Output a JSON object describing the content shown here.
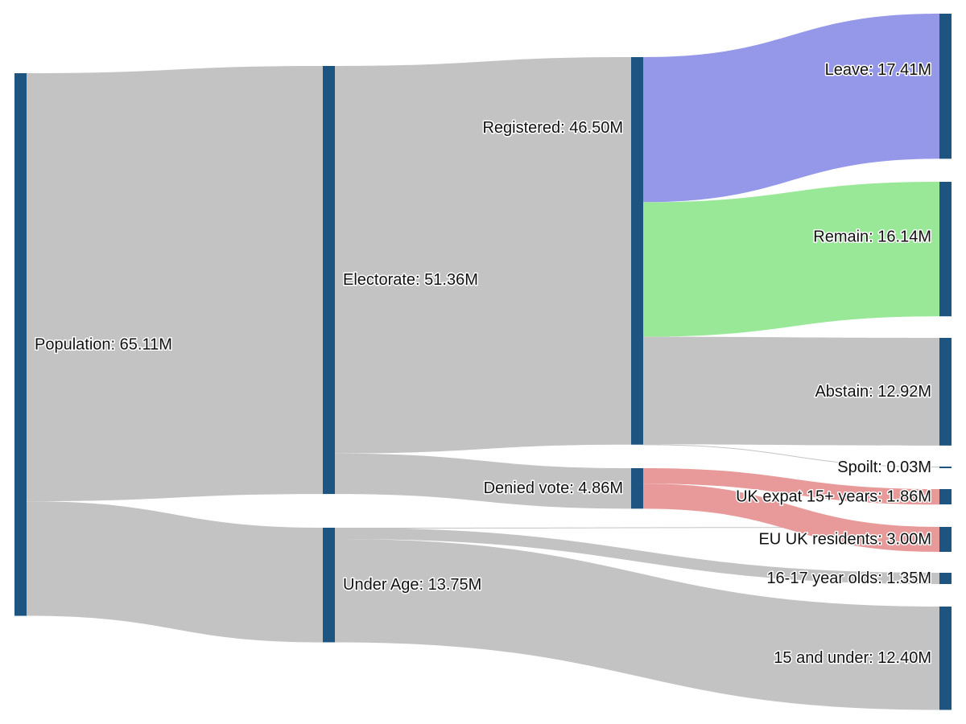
{
  "chart_data": {
    "type": "sankey",
    "unit": "M",
    "colors": {
      "node": "#1e5480",
      "link_default": "#c3c3c3",
      "leave": "#9598e8",
      "remain": "#98e898",
      "denied": "#e89a9a"
    },
    "nodes": [
      {
        "id": "population",
        "label": "Population: 65.11M",
        "value": 65.11
      },
      {
        "id": "electorate",
        "label": "Electorate: 51.36M",
        "value": 51.36
      },
      {
        "id": "under_age",
        "label": "Under Age: 13.75M",
        "value": 13.75
      },
      {
        "id": "registered",
        "label": "Registered: 46.50M",
        "value": 46.5
      },
      {
        "id": "denied_vote",
        "label": "Denied vote: 4.86M",
        "value": 4.86
      },
      {
        "id": "leave",
        "label": "Leave: 17.41M",
        "value": 17.41
      },
      {
        "id": "remain",
        "label": "Remain: 16.14M",
        "value": 16.14
      },
      {
        "id": "abstain",
        "label": "Abstain: 12.92M",
        "value": 12.92
      },
      {
        "id": "spoilt",
        "label": "Spoilt: 0.03M",
        "value": 0.03
      },
      {
        "id": "uk_expat",
        "label": "UK expat 15+ years: 1.86M",
        "value": 1.86
      },
      {
        "id": "eu_uk_residents",
        "label": "EU UK residents: 3.00M",
        "value": 3.0
      },
      {
        "id": "age_16_17",
        "label": "16-17 year olds: 1.35M",
        "value": 1.35
      },
      {
        "id": "age_15_under",
        "label": "15 and under: 12.40M",
        "value": 12.4
      }
    ],
    "links": [
      {
        "source": "population",
        "target": "electorate",
        "value": 51.36,
        "color": "link_default"
      },
      {
        "source": "population",
        "target": "under_age",
        "value": 13.75,
        "color": "link_default"
      },
      {
        "source": "electorate",
        "target": "registered",
        "value": 46.5,
        "color": "link_default"
      },
      {
        "source": "electorate",
        "target": "denied_vote",
        "value": 4.86,
        "color": "link_default"
      },
      {
        "source": "under_age",
        "target": "eu_uk_residents",
        "value": 0.0,
        "color": "link_default"
      },
      {
        "source": "under_age",
        "target": "age_16_17",
        "value": 1.35,
        "color": "link_default"
      },
      {
        "source": "under_age",
        "target": "age_15_under",
        "value": 12.4,
        "color": "link_default"
      },
      {
        "source": "registered",
        "target": "leave",
        "value": 17.41,
        "color": "leave"
      },
      {
        "source": "registered",
        "target": "remain",
        "value": 16.14,
        "color": "remain"
      },
      {
        "source": "registered",
        "target": "abstain",
        "value": 12.92,
        "color": "link_default"
      },
      {
        "source": "registered",
        "target": "spoilt",
        "value": 0.03,
        "color": "link_default"
      },
      {
        "source": "denied_vote",
        "target": "uk_expat",
        "value": 1.86,
        "color": "denied"
      },
      {
        "source": "denied_vote",
        "target": "eu_uk_residents",
        "value": 3.0,
        "color": "denied"
      }
    ]
  }
}
